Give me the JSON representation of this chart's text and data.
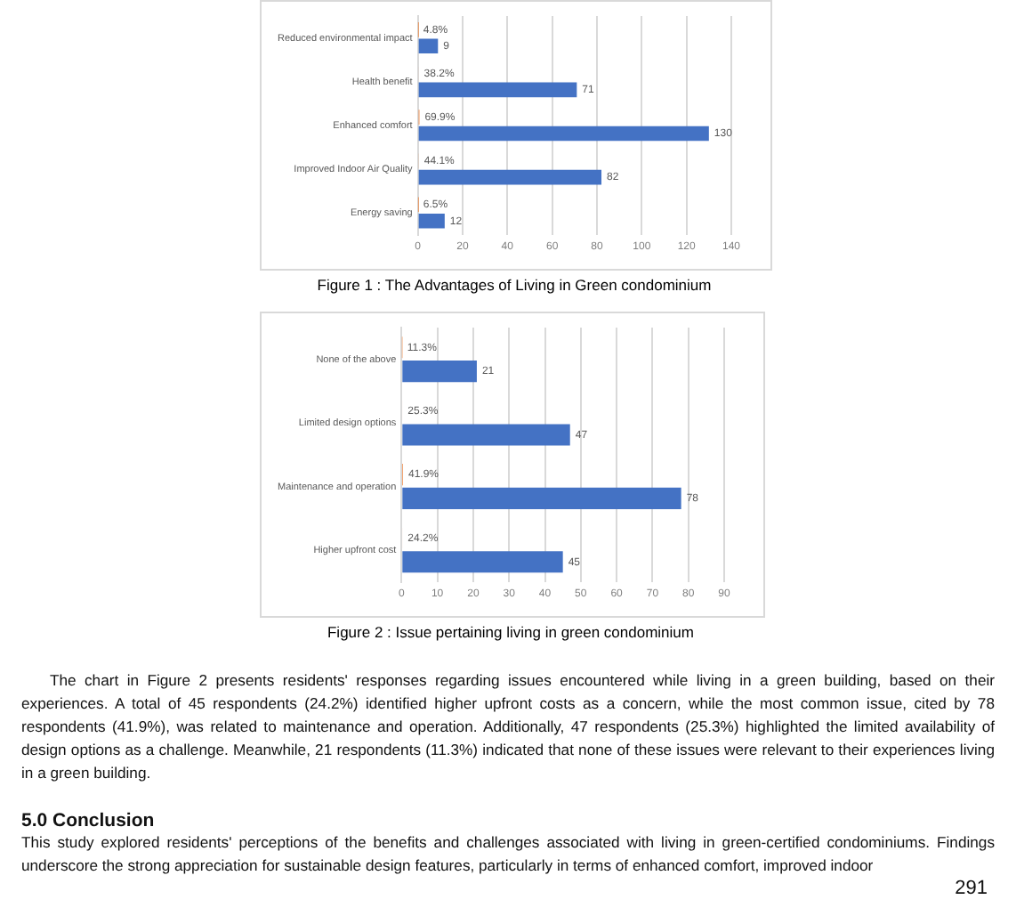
{
  "chart_data": [
    {
      "type": "bar",
      "orientation": "horizontal",
      "title": "Figure 1 : The Advantages of Living in Green condominium",
      "categories": [
        "Reduced environmental impact",
        "Health benefit",
        "Enhanced comfort",
        "Improved Indoor Air Quality",
        "Energy saving"
      ],
      "series": [
        {
          "color": "#ed7d31",
          "values": [
            0.048,
            0.382,
            0.699,
            0.441,
            0.065
          ],
          "value_labels": [
            "4.8%",
            "38.2%",
            "69.9%",
            "44.1%",
            "6.5%"
          ]
        },
        {
          "color": "#4472c4",
          "values": [
            9,
            71,
            130,
            82,
            12
          ],
          "value_labels": [
            "9",
            "71",
            "130",
            "82",
            "12"
          ]
        }
      ],
      "xlim": [
        0,
        140
      ],
      "xticks": [
        0,
        20,
        40,
        60,
        80,
        100,
        120,
        140
      ],
      "grid": "x"
    },
    {
      "type": "bar",
      "orientation": "horizontal",
      "title": "Figure 2 : Issue pertaining living in green condominium",
      "categories": [
        "None of the above",
        "Limited design options",
        "Maintenance and operation",
        "Higher upfront cost"
      ],
      "series": [
        {
          "color": "#ed7d31",
          "values": [
            0.113,
            0.253,
            0.419,
            0.242
          ],
          "value_labels": [
            "11.3%",
            "25.3%",
            "41.9%",
            "24.2%"
          ]
        },
        {
          "color": "#4472c4",
          "values": [
            21,
            47,
            78,
            45
          ],
          "value_labels": [
            "21",
            "47",
            "78",
            "45"
          ]
        }
      ],
      "xlim": [
        0,
        90
      ],
      "xticks": [
        0,
        10,
        20,
        30,
        40,
        50,
        60,
        70,
        80,
        90
      ],
      "grid": "x"
    },
    {
      "type": "other",
      "annotations": [
        "The chart in Figure 2 presents residents' responses regarding issues encountered while living in a green building, based on their experiences. A total of 45 respondents (24.2%) identified higher upfront costs as a concern, while the most common issue, cited by 78 respondents (41.9%), was related to maintenance and operation. Additionally, 47 respondents (25.3%) highlighted the limited availability of design options as a challenge. Meanwhile, 21 respondents (11.3%) indicated that none of these issues were relevant to their experiences living in a green building.",
        "5.0 Conclusion",
        "This study explored residents' perceptions of the benefits and challenges associated with living in green-certified condominiums. Findings underscore the strong appreciation for sustainable design features, particularly in terms of enhanced comfort, improved indoor",
        "291"
      ]
    }
  ]
}
